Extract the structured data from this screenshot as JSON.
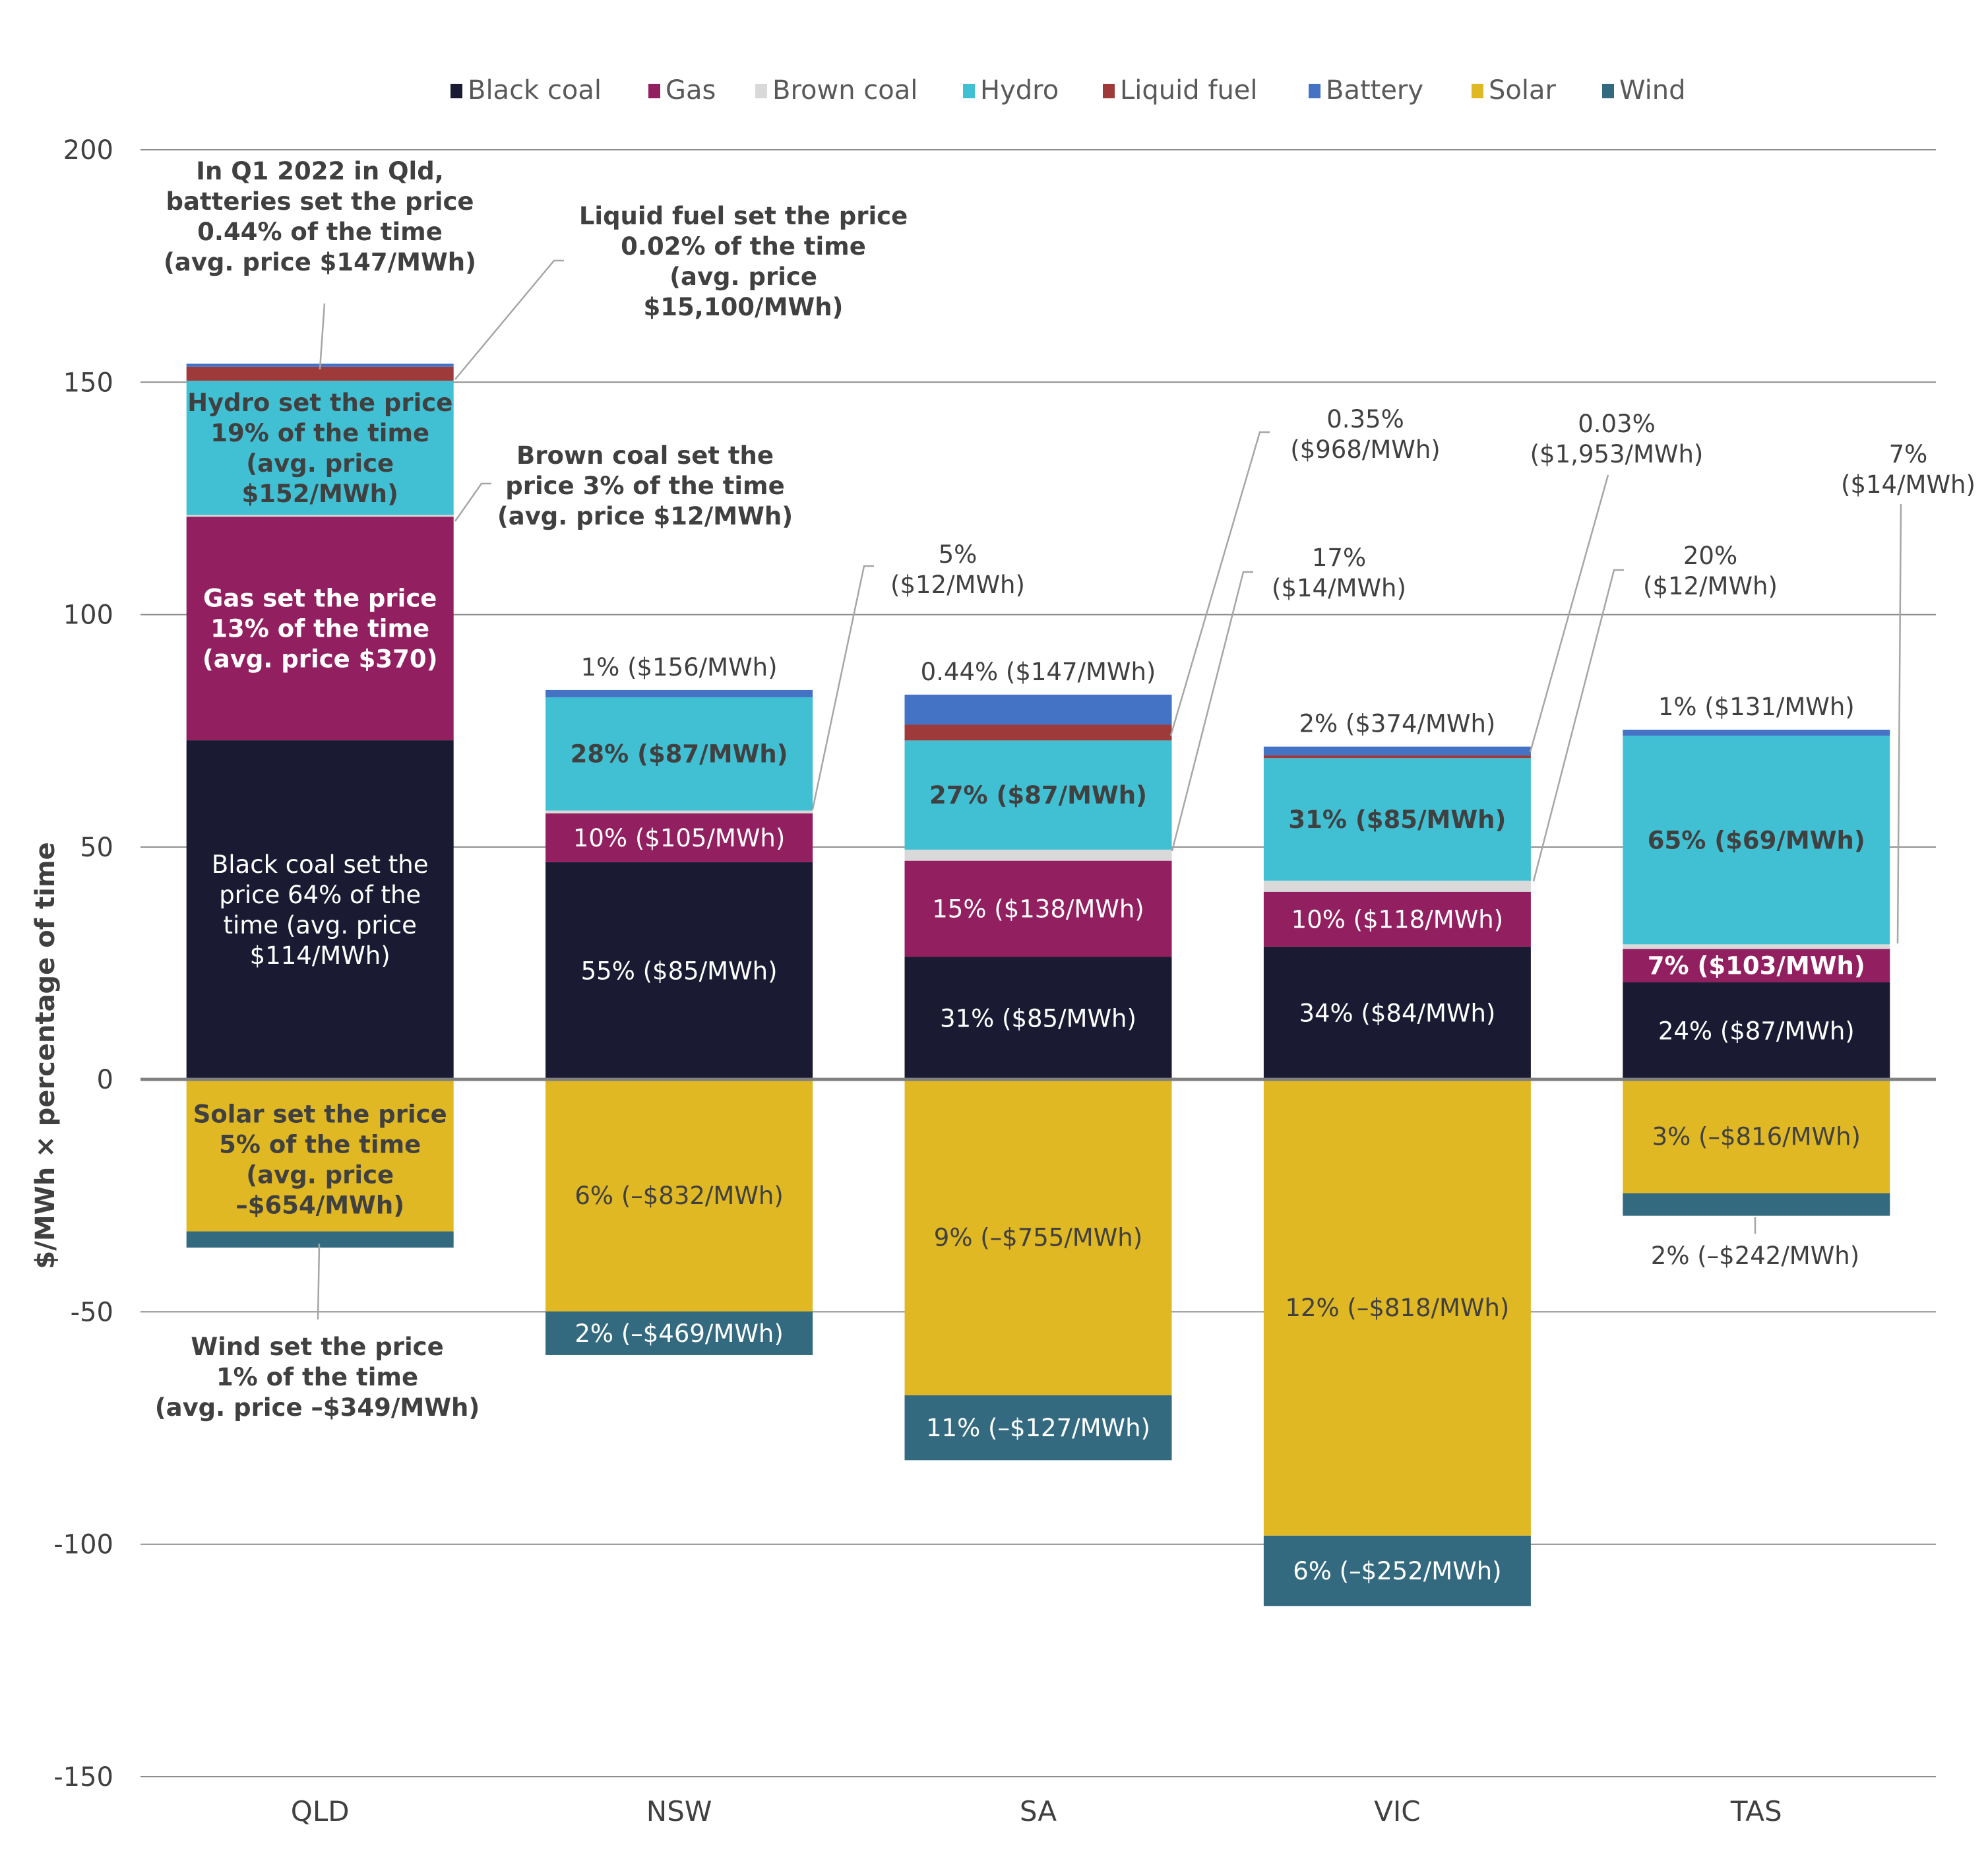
{
  "chart_data": {
    "type": "bar",
    "stacked": true,
    "title": "",
    "xlabel": "",
    "ylabel": "$/MWh × percentage of time",
    "ylim": [
      -150,
      200
    ],
    "yticks": [
      200,
      150,
      100,
      50,
      0,
      -50,
      -100,
      -150
    ],
    "grid": true,
    "legend_position": "top",
    "categories": [
      "QLD",
      "NSW",
      "SA",
      "VIC",
      "TAS"
    ],
    "series": [
      {
        "name": "Black coal",
        "color": "#1A1B33",
        "values": [
          72.96,
          46.75,
          26.35,
          28.56,
          20.88
        ]
      },
      {
        "name": "Gas",
        "color": "#921F60",
        "values": [
          48.1,
          10.5,
          20.7,
          11.8,
          7.21
        ]
      },
      {
        "name": "Brown coal",
        "color": "#D9D9D9",
        "values": [
          0.36,
          0.6,
          2.38,
          2.4,
          0.98
        ]
      },
      {
        "name": "Hydro",
        "color": "#41C0D4",
        "values": [
          28.88,
          24.36,
          23.49,
          26.35,
          44.85
        ]
      },
      {
        "name": "Liquid fuel",
        "color": "#9E3B3A",
        "values": [
          3.02,
          0,
          3.39,
          0.59,
          0
        ]
      },
      {
        "name": "Battery",
        "color": "#4472C4",
        "values": [
          0.65,
          1.56,
          6.47,
          1.9,
          1.31
        ]
      },
      {
        "name": "Solar",
        "color": "#E0B823",
        "values": [
          -32.7,
          -49.92,
          -67.95,
          -98.16,
          -24.48
        ]
      },
      {
        "name": "Wind",
        "color": "#336A80",
        "values": [
          -3.49,
          -9.38,
          -13.97,
          -15.12,
          -4.84
        ]
      }
    ],
    "segment_labels": {
      "QLD": {
        "Black coal": [
          "Black coal set the",
          "price 64% of the",
          "time (avg. price",
          "$114/MWh)"
        ],
        "Gas": [
          "Gas set the price",
          "13% of the time",
          "(avg. price $370)"
        ],
        "Hydro": [
          "Hydro set the price",
          "19% of the time",
          "(avg. price",
          "$152/MWh)"
        ],
        "Solar": [
          "Solar set the price",
          "5% of the time",
          "(avg. price",
          "–$654/MWh)"
        ]
      },
      "NSW": {
        "Black coal": "55% ($85/MWh)",
        "Gas": "10% ($105/MWh)",
        "Hydro": "28% ($87/MWh)",
        "Solar": "6% (–$832/MWh)",
        "Wind": "2% (–$469/MWh)",
        "Battery": "1% ($156/MWh)"
      },
      "SA": {
        "Black coal": "31% ($85/MWh)",
        "Gas": "15% ($138/MWh)",
        "Hydro": "27% ($87/MWh)",
        "Solar": "9% (–$755/MWh)",
        "Wind": "11% (–$127/MWh)",
        "Battery": "0.44% ($147/MWh)"
      },
      "VIC": {
        "Black coal": "34% ($84/MWh)",
        "Gas": "10% ($118/MWh)",
        "Hydro": "31% ($85/MWh)",
        "Solar": "12% (–$818/MWh)",
        "Wind": "6% (–$252/MWh)",
        "Battery": "2% ($374/MWh)"
      },
      "TAS": {
        "Black coal": "24% ($87/MWh)",
        "Gas": "7% ($103/MWh)",
        "Hydro": "65% ($69/MWh)",
        "Solar": "3% (–$816/MWh)",
        "Wind": "2% (–$242/MWh)",
        "Battery": "1% ($131/MWh)"
      }
    },
    "annotations": {
      "qld_battery": [
        "In Q1 2022 in Qld,",
        "batteries set the price",
        "0.44% of the time",
        "(avg. price $147/MWh)"
      ],
      "qld_liquid": [
        "Liquid fuel set the price",
        "0.02% of the time",
        "(avg. price",
        "$15,100/MWh)"
      ],
      "qld_brown": [
        "Brown coal set the",
        "price 3% of the time",
        "(avg. price $12/MWh)"
      ],
      "qld_wind": [
        "Wind set the price",
        "1% of the time",
        "(avg. price –$349/MWh)"
      ],
      "nsw_brown": [
        "5%",
        "($12/MWh)"
      ],
      "sa_liquid": [
        "0.35%",
        "($968/MWh)"
      ],
      "sa_brown": [
        "17%",
        "($14/MWh)"
      ],
      "vic_liquid": [
        "0.03%",
        "($1,953/MWh)"
      ],
      "vic_brown": [
        "20%",
        "($12/MWh)"
      ],
      "tas_brown": [
        "7%",
        "($14/MWh)"
      ]
    }
  }
}
